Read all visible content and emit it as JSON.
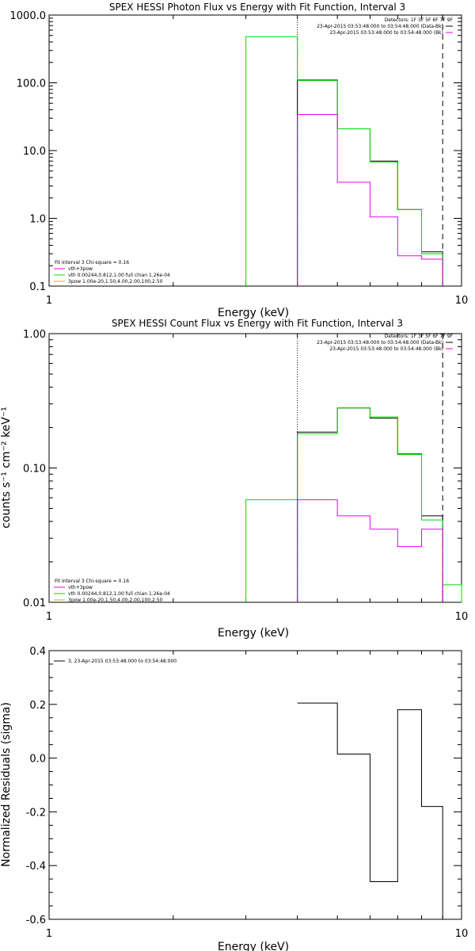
{
  "chart_data": [
    {
      "type": "line",
      "title": "SPEX HESSI Photon Flux vs Energy with Fit Function, Interval 3",
      "xlabel": "Energy (keV)",
      "ylabel": "",
      "xscale": "log",
      "yscale": "log",
      "xlim": [
        1,
        10
      ],
      "ylim": [
        0.1,
        1000
      ],
      "xticklabels": [
        "1",
        "10"
      ],
      "yticks": [
        0.1,
        1,
        10,
        100,
        1000
      ],
      "yticklabels": [
        "0.1",
        "1.0",
        "10.0",
        "100.0",
        "1000.0"
      ],
      "energy_edges": [
        3.0,
        4.0,
        5.0,
        6.0,
        7.0,
        8.0,
        9.0
      ],
      "series": [
        {
          "name": "vth+3pow",
          "color": "#000000",
          "values": [
            null,
            110,
            21,
            7.0,
            1.35,
            0.32
          ]
        },
        {
          "name": "vth 0.00244,0.812,1.00   full chian 1.26e-04",
          "color": "#00dd00",
          "values": [
            480,
            108,
            21,
            6.8,
            1.35,
            0.3
          ]
        },
        {
          "name": "3pow 1.00e-20,1.50,4.00,2.00,100,2.50",
          "color": "#ee00ee",
          "values": [
            null,
            34,
            3.4,
            1.05,
            0.28,
            0.25
          ]
        }
      ],
      "vlines": [
        {
          "x": 4.0,
          "style": "dotted"
        },
        {
          "x": 9.0,
          "style": "dashed"
        }
      ],
      "header_text": [
        "Detectors: 1F 3F 5F 6F 7F 9F",
        "23-Apr-2015 03:53:48.000 to 03:54:48.000 (Data-Bk)",
        "23-Apr-2015 03:53:48.000 to 03:54:48.000 (Bk)"
      ],
      "legend_lines": [
        "Fit Interval 3   Chi-square = 0.16",
        "vth+3pow",
        "vth 0.00244,0.812,1.00   full chian 1.26e-04",
        "3pow 1.00e-20,1.50,4.00,2.00,100,2.50"
      ],
      "legend_position": "bottom-left"
    },
    {
      "type": "line",
      "title": "SPEX HESSI Count Flux vs Energy with Fit Function, Interval 3",
      "xlabel": "Energy (keV)",
      "ylabel": "counts s⁻¹ cm⁻² keV⁻¹",
      "xscale": "log",
      "yscale": "log",
      "xlim": [
        1,
        10
      ],
      "ylim": [
        0.01,
        1
      ],
      "xticklabels": [
        "1",
        "10"
      ],
      "yticks": [
        0.01,
        0.1,
        1
      ],
      "yticklabels": [
        "0.01",
        "0.10",
        "1.00"
      ],
      "energy_edges": [
        3.0,
        4.0,
        5.0,
        6.0,
        7.0,
        8.0,
        9.0,
        10.0
      ],
      "series": [
        {
          "name": "Data-Bk",
          "color": "#000000",
          "values": [
            null,
            0.185,
            0.28,
            0.235,
            0.127,
            0.044,
            null
          ]
        },
        {
          "name": "vth",
          "color": "#00dd00",
          "values": [
            0.058,
            0.18,
            0.28,
            0.24,
            0.126,
            0.041,
            0.0135
          ]
        },
        {
          "name": "3pow",
          "color": "#ee00ee",
          "values": [
            null,
            0.058,
            0.044,
            0.035,
            0.026,
            0.035,
            null
          ]
        }
      ],
      "vlines": [
        {
          "x": 4.0,
          "style": "dotted"
        },
        {
          "x": 9.0,
          "style": "dashed"
        }
      ],
      "header_text": [
        "Detectors: 1F 3F 5F 6F 7F 9F",
        "23-Apr-2015 03:53:48.000 to 03:54:48.000 (Data-Bk)",
        "23-Apr-2015 03:53:48.000 to 03:54:48.000 (Bk)"
      ],
      "legend_lines": [
        "Fit Interval 3   Chi-square = 0.16",
        "vth+3pow",
        "vth 0.00244,0.812,1.00   full chian 1.26e-04",
        "3pow 1.00e-20,1.50,4.00,2.00,100,2.50"
      ],
      "legend_position": "bottom-left"
    },
    {
      "type": "line",
      "title": "",
      "xlabel": "Energy (keV)",
      "ylabel": "Normalized Residuals (sigma)",
      "xscale": "log",
      "yscale": "linear",
      "xlim": [
        1,
        10
      ],
      "ylim": [
        -0.6,
        0.4
      ],
      "xticklabels": [
        "1",
        "10"
      ],
      "yticks": [
        -0.6,
        -0.4,
        -0.2,
        0.0,
        0.2,
        0.4
      ],
      "yticklabels": [
        "-0.6",
        "-0.4",
        "-0.2",
        "0.0",
        "0.2",
        "0.4"
      ],
      "energy_edges": [
        4.0,
        5.0,
        6.0,
        7.0,
        8.0,
        9.0
      ],
      "series": [
        {
          "name": "3, 23-Apr-2015 03:53:48.000 to 03:54:48.000",
          "color": "#000000",
          "values": [
            0.205,
            0.015,
            -0.46,
            0.18,
            -0.18
          ]
        }
      ],
      "legend_lines": [
        "3, 23-Apr-2015 03:53:48.000 to 03:54:48.000"
      ],
      "legend_position": "top-left"
    }
  ]
}
